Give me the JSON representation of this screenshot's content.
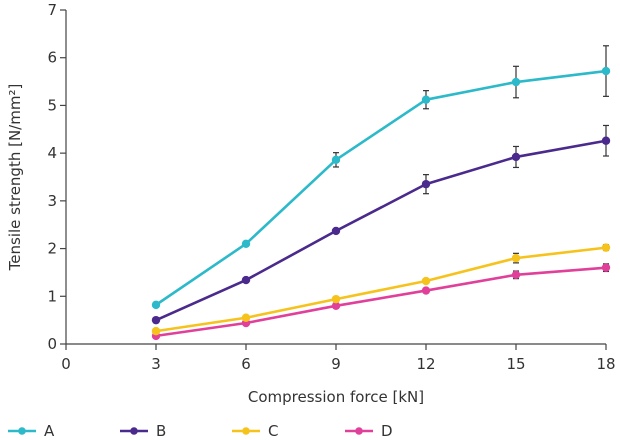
{
  "chart_data": {
    "type": "line",
    "title": "",
    "xlabel": "Compression force [kN]",
    "ylabel": "Tensile strength [N/mm²]",
    "xlim": [
      0,
      18
    ],
    "ylim": [
      0,
      7
    ],
    "x_ticks": [
      "0",
      "3",
      "6",
      "9",
      "12",
      "15",
      "18"
    ],
    "y_ticks": [
      "0",
      "1",
      "2",
      "3",
      "4",
      "5",
      "6",
      "7"
    ],
    "grid": false,
    "legend_position": "bottom",
    "x": [
      3,
      6,
      9,
      12,
      15,
      18
    ],
    "series": [
      {
        "name": "A",
        "color": "#2cb9c9",
        "values": [
          0.82,
          2.1,
          3.86,
          5.12,
          5.49,
          5.72
        ],
        "errors": [
          0,
          0,
          0.15,
          0.19,
          0.33,
          0.53
        ]
      },
      {
        "name": "B",
        "color": "#4a2a8c",
        "values": [
          0.5,
          1.34,
          2.37,
          3.35,
          3.92,
          4.26
        ],
        "errors": [
          0,
          0,
          0,
          0.2,
          0.22,
          0.32
        ]
      },
      {
        "name": "C",
        "color": "#f6c21c",
        "values": [
          0.27,
          0.55,
          0.94,
          1.32,
          1.8,
          2.02
        ],
        "errors": [
          0,
          0,
          0,
          0,
          0.1,
          0.06
        ]
      },
      {
        "name": "D",
        "color": "#e0409a",
        "values": [
          0.17,
          0.44,
          0.8,
          1.12,
          1.45,
          1.6
        ],
        "errors": [
          0,
          0,
          0,
          0,
          0.08,
          0.08
        ]
      }
    ]
  }
}
